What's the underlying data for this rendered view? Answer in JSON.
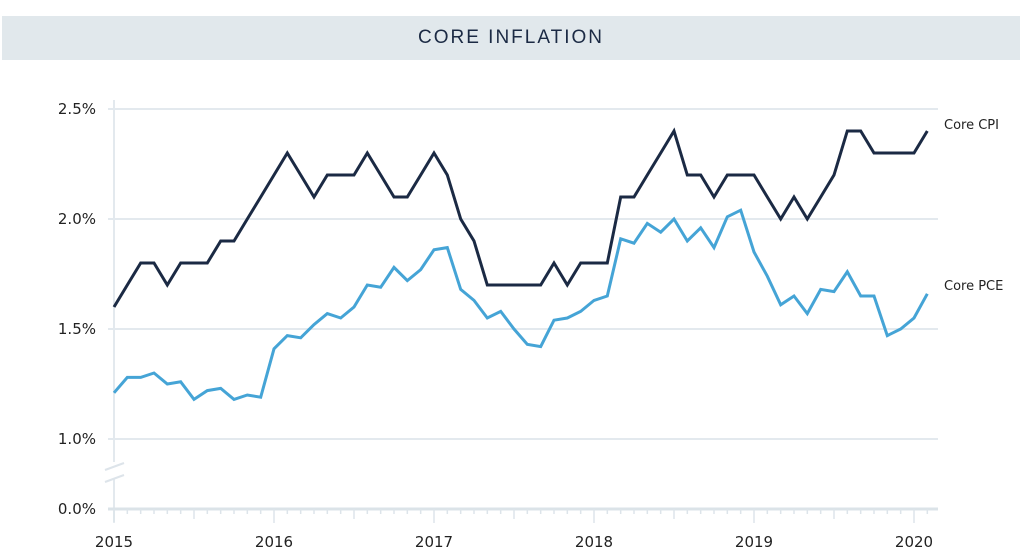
{
  "header": {
    "title": "CORE INFLATION"
  },
  "chart_data": {
    "type": "line",
    "title": "CORE INFLATION",
    "xlabel": "",
    "ylabel": "",
    "x_start": "2015-01",
    "x_frequency": "monthly",
    "x_tick_labels": [
      "2015",
      "2016",
      "2017",
      "2018",
      "2019",
      "2020"
    ],
    "y_tick_labels": [
      "0.0%",
      "1.0%",
      "1.5%",
      "2.0%",
      "2.5%"
    ],
    "y_tick_values": [
      0.0,
      1.0,
      1.5,
      2.0,
      2.5
    ],
    "ylim": [
      0.0,
      2.5
    ],
    "y_axis_break": [
      0.0,
      1.0
    ],
    "grid": true,
    "legend": "inline-right",
    "series": [
      {
        "name": "Core CPI",
        "color": "#1b2a44",
        "values": [
          1.6,
          1.7,
          1.8,
          1.8,
          1.7,
          1.8,
          1.8,
          1.8,
          1.9,
          1.9,
          2.0,
          2.1,
          2.2,
          2.3,
          2.2,
          2.1,
          2.2,
          2.2,
          2.2,
          2.3,
          2.2,
          2.1,
          2.1,
          2.2,
          2.3,
          2.2,
          2.0,
          1.9,
          1.7,
          1.7,
          1.7,
          1.7,
          1.7,
          1.8,
          1.7,
          1.8,
          1.8,
          1.8,
          2.1,
          2.1,
          2.2,
          2.3,
          2.4,
          2.2,
          2.2,
          2.1,
          2.2,
          2.2,
          2.2,
          2.1,
          2.0,
          2.1,
          2.0,
          2.1,
          2.2,
          2.4,
          2.4,
          2.3,
          2.3,
          2.3,
          2.3,
          2.4
        ]
      },
      {
        "name": "Core PCE",
        "color": "#45a4d6",
        "values": [
          1.21,
          1.28,
          1.28,
          1.3,
          1.25,
          1.26,
          1.18,
          1.22,
          1.23,
          1.18,
          1.2,
          1.19,
          1.41,
          1.47,
          1.46,
          1.52,
          1.57,
          1.55,
          1.6,
          1.7,
          1.69,
          1.78,
          1.72,
          1.77,
          1.86,
          1.87,
          1.68,
          1.63,
          1.55,
          1.58,
          1.5,
          1.43,
          1.42,
          1.54,
          1.55,
          1.58,
          1.63,
          1.65,
          1.91,
          1.89,
          1.98,
          1.94,
          2.0,
          1.9,
          1.96,
          1.87,
          2.01,
          2.04,
          1.85,
          1.74,
          1.61,
          1.65,
          1.57,
          1.68,
          1.67,
          1.76,
          1.65,
          1.65,
          1.47,
          1.5,
          1.55,
          1.66
        ]
      }
    ]
  }
}
